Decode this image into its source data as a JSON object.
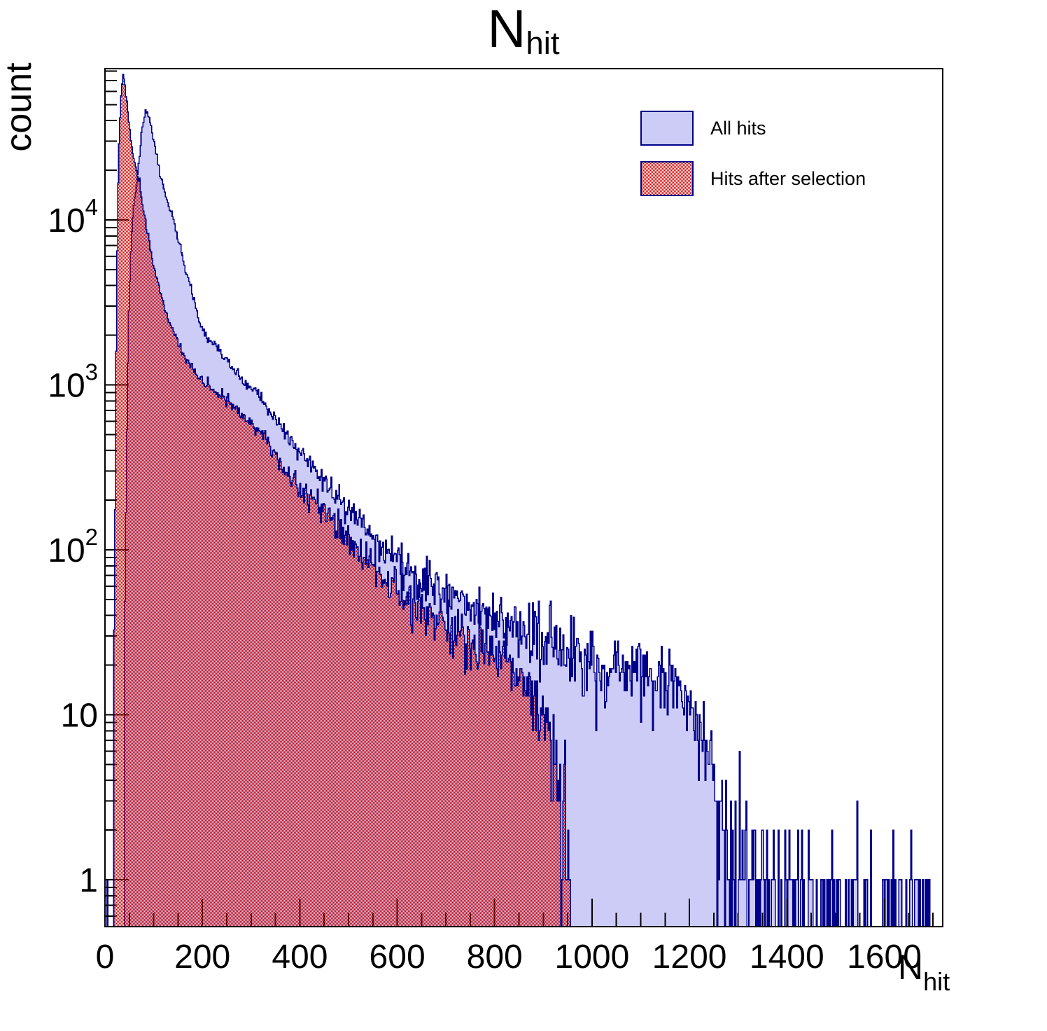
{
  "chart_data": {
    "type": "histogram",
    "title": {
      "text": "N",
      "sub": "hit"
    },
    "xlabel": {
      "text": "N",
      "sub": "hit"
    },
    "ylabel": "count",
    "x_axis": {
      "min": 0,
      "max": 1720,
      "major_tick_step": 200,
      "minor_tick_step": 50,
      "major_ticks": [
        0,
        200,
        400,
        600,
        800,
        1000,
        1200,
        1400,
        1600
      ],
      "tick_labels": [
        "0",
        "200",
        "400",
        "600",
        "800",
        "1000",
        "1200",
        "1400",
        "1600"
      ]
    },
    "y_axis": {
      "scale": "log",
      "min": 0.52,
      "max": 82000,
      "tick_labels": [
        {
          "value": 1,
          "text": "1",
          "exp": ""
        },
        {
          "value": 10,
          "text": "10",
          "exp": ""
        },
        {
          "value": 100,
          "text": "10",
          "exp": "2"
        },
        {
          "value": 1000,
          "text": "10",
          "exp": "3"
        },
        {
          "value": 10000,
          "text": "10",
          "exp": "4"
        }
      ]
    },
    "bin_width": 2,
    "grid": false,
    "legend_position": "top-right",
    "series": [
      {
        "name": "All hits",
        "fill_style": "solid",
        "fill_color": "#ccccf6",
        "line_color": "#00008b",
        "peak": {
          "x": 83,
          "y": 46000
        },
        "envelope": [
          [
            0,
            0
          ],
          [
            1,
            0.5
          ],
          [
            5,
            0.6
          ],
          [
            9,
            0.5
          ],
          [
            13,
            0.45
          ],
          [
            15,
            0
          ],
          [
            40,
            0
          ],
          [
            42,
            60
          ],
          [
            44,
            300
          ],
          [
            46,
            900
          ],
          [
            48,
            2200
          ],
          [
            50,
            3800
          ],
          [
            53,
            6500
          ],
          [
            56,
            9500
          ],
          [
            60,
            13000
          ],
          [
            65,
            16500
          ],
          [
            70,
            24000
          ],
          [
            75,
            32500
          ],
          [
            79,
            40000
          ],
          [
            83,
            46000
          ],
          [
            88,
            44000
          ],
          [
            94,
            38500
          ],
          [
            100,
            31500
          ],
          [
            106,
            25500
          ],
          [
            112,
            20200
          ],
          [
            118,
            17000
          ],
          [
            124,
            14600
          ],
          [
            130,
            12600
          ],
          [
            137,
            10500
          ],
          [
            144,
            8900
          ],
          [
            152,
            7300
          ],
          [
            161,
            5500
          ],
          [
            172,
            4300
          ],
          [
            184,
            3170
          ],
          [
            199,
            2140
          ],
          [
            210,
            1950
          ],
          [
            225,
            1750
          ],
          [
            245,
            1500
          ],
          [
            265,
            1250
          ],
          [
            285,
            1030
          ],
          [
            305,
            930
          ],
          [
            330,
            760
          ],
          [
            360,
            570
          ],
          [
            390,
            420
          ],
          [
            420,
            330
          ],
          [
            450,
            265
          ],
          [
            480,
            205
          ],
          [
            510,
            168
          ],
          [
            545,
            128
          ],
          [
            576,
            103
          ],
          [
            620,
            82
          ],
          [
            665,
            63
          ],
          [
            710,
            53
          ],
          [
            760,
            45
          ],
          [
            810,
            38
          ],
          [
            863,
            33
          ],
          [
            900,
            28
          ],
          [
            950,
            25
          ],
          [
            1000,
            22
          ],
          [
            1060,
            21
          ],
          [
            1120,
            19
          ],
          [
            1160,
            17
          ],
          [
            1200,
            12
          ],
          [
            1225,
            8
          ],
          [
            1245,
            5
          ],
          [
            1262,
            3
          ],
          [
            1285,
            1.8
          ],
          [
            1310,
            1.3
          ],
          [
            1360,
            1.0
          ],
          [
            1420,
            0.7
          ],
          [
            1480,
            0.5
          ],
          [
            1540,
            0.4
          ],
          [
            1620,
            0.35
          ],
          [
            1700,
            0.35
          ],
          [
            1708,
            0.4
          ],
          [
            1712,
            0
          ]
        ]
      },
      {
        "name": "Hits after selection",
        "fill_style": "checker",
        "fill_color": "#cc0000",
        "line_color": "#00008b",
        "peak": {
          "x": 37,
          "y": 74000
        },
        "cutoff_x": 957,
        "envelope": [
          [
            0,
            0
          ],
          [
            18,
            0
          ],
          [
            20,
            60
          ],
          [
            22,
            700
          ],
          [
            24,
            3500
          ],
          [
            26,
            12000
          ],
          [
            29,
            30000
          ],
          [
            32,
            52000
          ],
          [
            35,
            70000
          ],
          [
            37,
            74000
          ],
          [
            40,
            68000
          ],
          [
            44,
            54000
          ],
          [
            48,
            42000
          ],
          [
            53,
            31000
          ],
          [
            58,
            24500
          ],
          [
            64,
            20500
          ],
          [
            69,
            18300
          ],
          [
            75,
            13500
          ],
          [
            82,
            10200
          ],
          [
            89,
            7700
          ],
          [
            97,
            5700
          ],
          [
            105,
            4600
          ],
          [
            112,
            3850
          ],
          [
            122,
            2900
          ],
          [
            132,
            2380
          ],
          [
            145,
            1950
          ],
          [
            160,
            1550
          ],
          [
            173,
            1340
          ],
          [
            190,
            1120
          ],
          [
            210,
            990
          ],
          [
            230,
            910
          ],
          [
            245,
            860
          ],
          [
            265,
            750
          ],
          [
            285,
            645
          ],
          [
            305,
            560
          ],
          [
            330,
            470
          ],
          [
            360,
            330
          ],
          [
            390,
            260
          ],
          [
            420,
            210
          ],
          [
            450,
            175
          ],
          [
            480,
            140
          ],
          [
            510,
            112
          ],
          [
            545,
            88
          ],
          [
            576,
            62
          ],
          [
            620,
            50
          ],
          [
            665,
            40
          ],
          [
            710,
            33
          ],
          [
            760,
            27
          ],
          [
            810,
            23
          ],
          [
            849,
            17
          ],
          [
            880,
            13
          ],
          [
            905,
            10
          ],
          [
            925,
            7
          ],
          [
            940,
            4
          ],
          [
            950,
            2
          ],
          [
            955,
            1.2
          ],
          [
            957,
            0
          ]
        ]
      }
    ]
  },
  "frame": {
    "line_color": "#000000"
  },
  "legend": {
    "entries": [
      {
        "label": "All hits"
      },
      {
        "label": "Hits after selection"
      }
    ]
  }
}
